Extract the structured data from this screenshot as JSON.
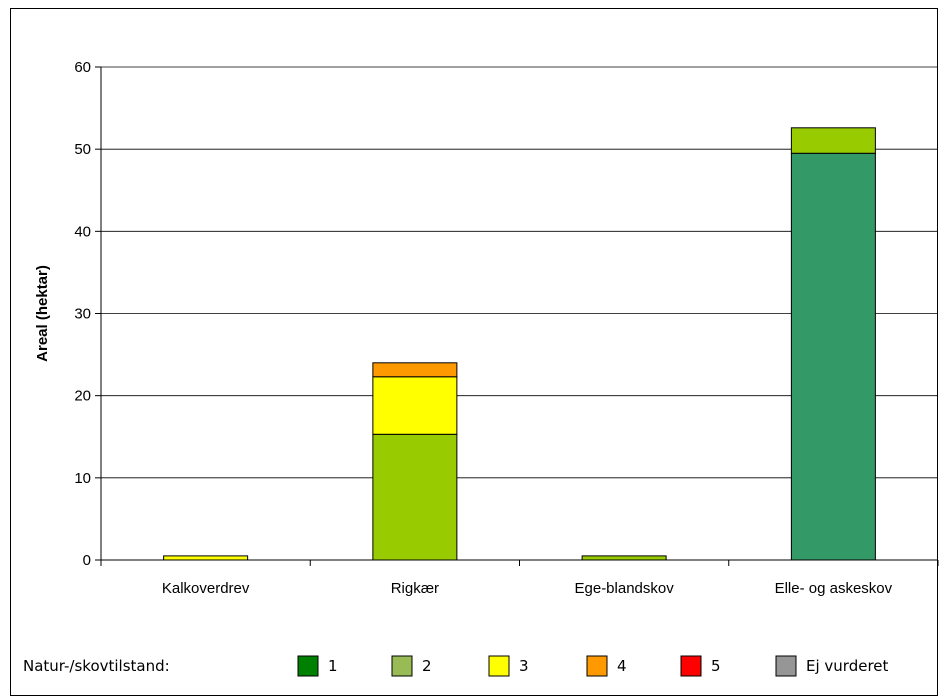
{
  "chart_data": {
    "type": "bar",
    "stacked": true,
    "title": "",
    "xlabel": "",
    "ylabel": "Areal (hektar)",
    "ylim": [
      0,
      60
    ],
    "yticks": [
      0,
      10,
      20,
      30,
      40,
      50,
      60
    ],
    "grid": true,
    "categories": [
      "Kalkoverdrev",
      "Rigkær",
      "Ege-blandskov",
      "Elle- og askeskov"
    ],
    "legend_title": "Natur-/skovtilstand:",
    "legend_position": "bottom",
    "series": [
      {
        "name": "1",
        "color": "#339966",
        "values": [
          0,
          0,
          0,
          49.5
        ]
      },
      {
        "name": "2",
        "color": "#99cc00",
        "values": [
          0,
          15.3,
          0.5,
          3.1
        ]
      },
      {
        "name": "3",
        "color": "#ffff00",
        "values": [
          0.5,
          7.0,
          0,
          0
        ]
      },
      {
        "name": "4",
        "color": "#ff9900",
        "values": [
          0,
          1.7,
          0,
          0
        ]
      },
      {
        "name": "5",
        "color": "#ff0000",
        "values": [
          0,
          0,
          0,
          0
        ]
      },
      {
        "name": "Ej vurderet",
        "color": "#969696",
        "values": [
          0,
          0,
          0,
          0
        ]
      }
    ],
    "legend_colors": [
      "#008000",
      "#99bb55",
      "#ffff00",
      "#ff9900",
      "#ff0000",
      "#969696"
    ]
  }
}
